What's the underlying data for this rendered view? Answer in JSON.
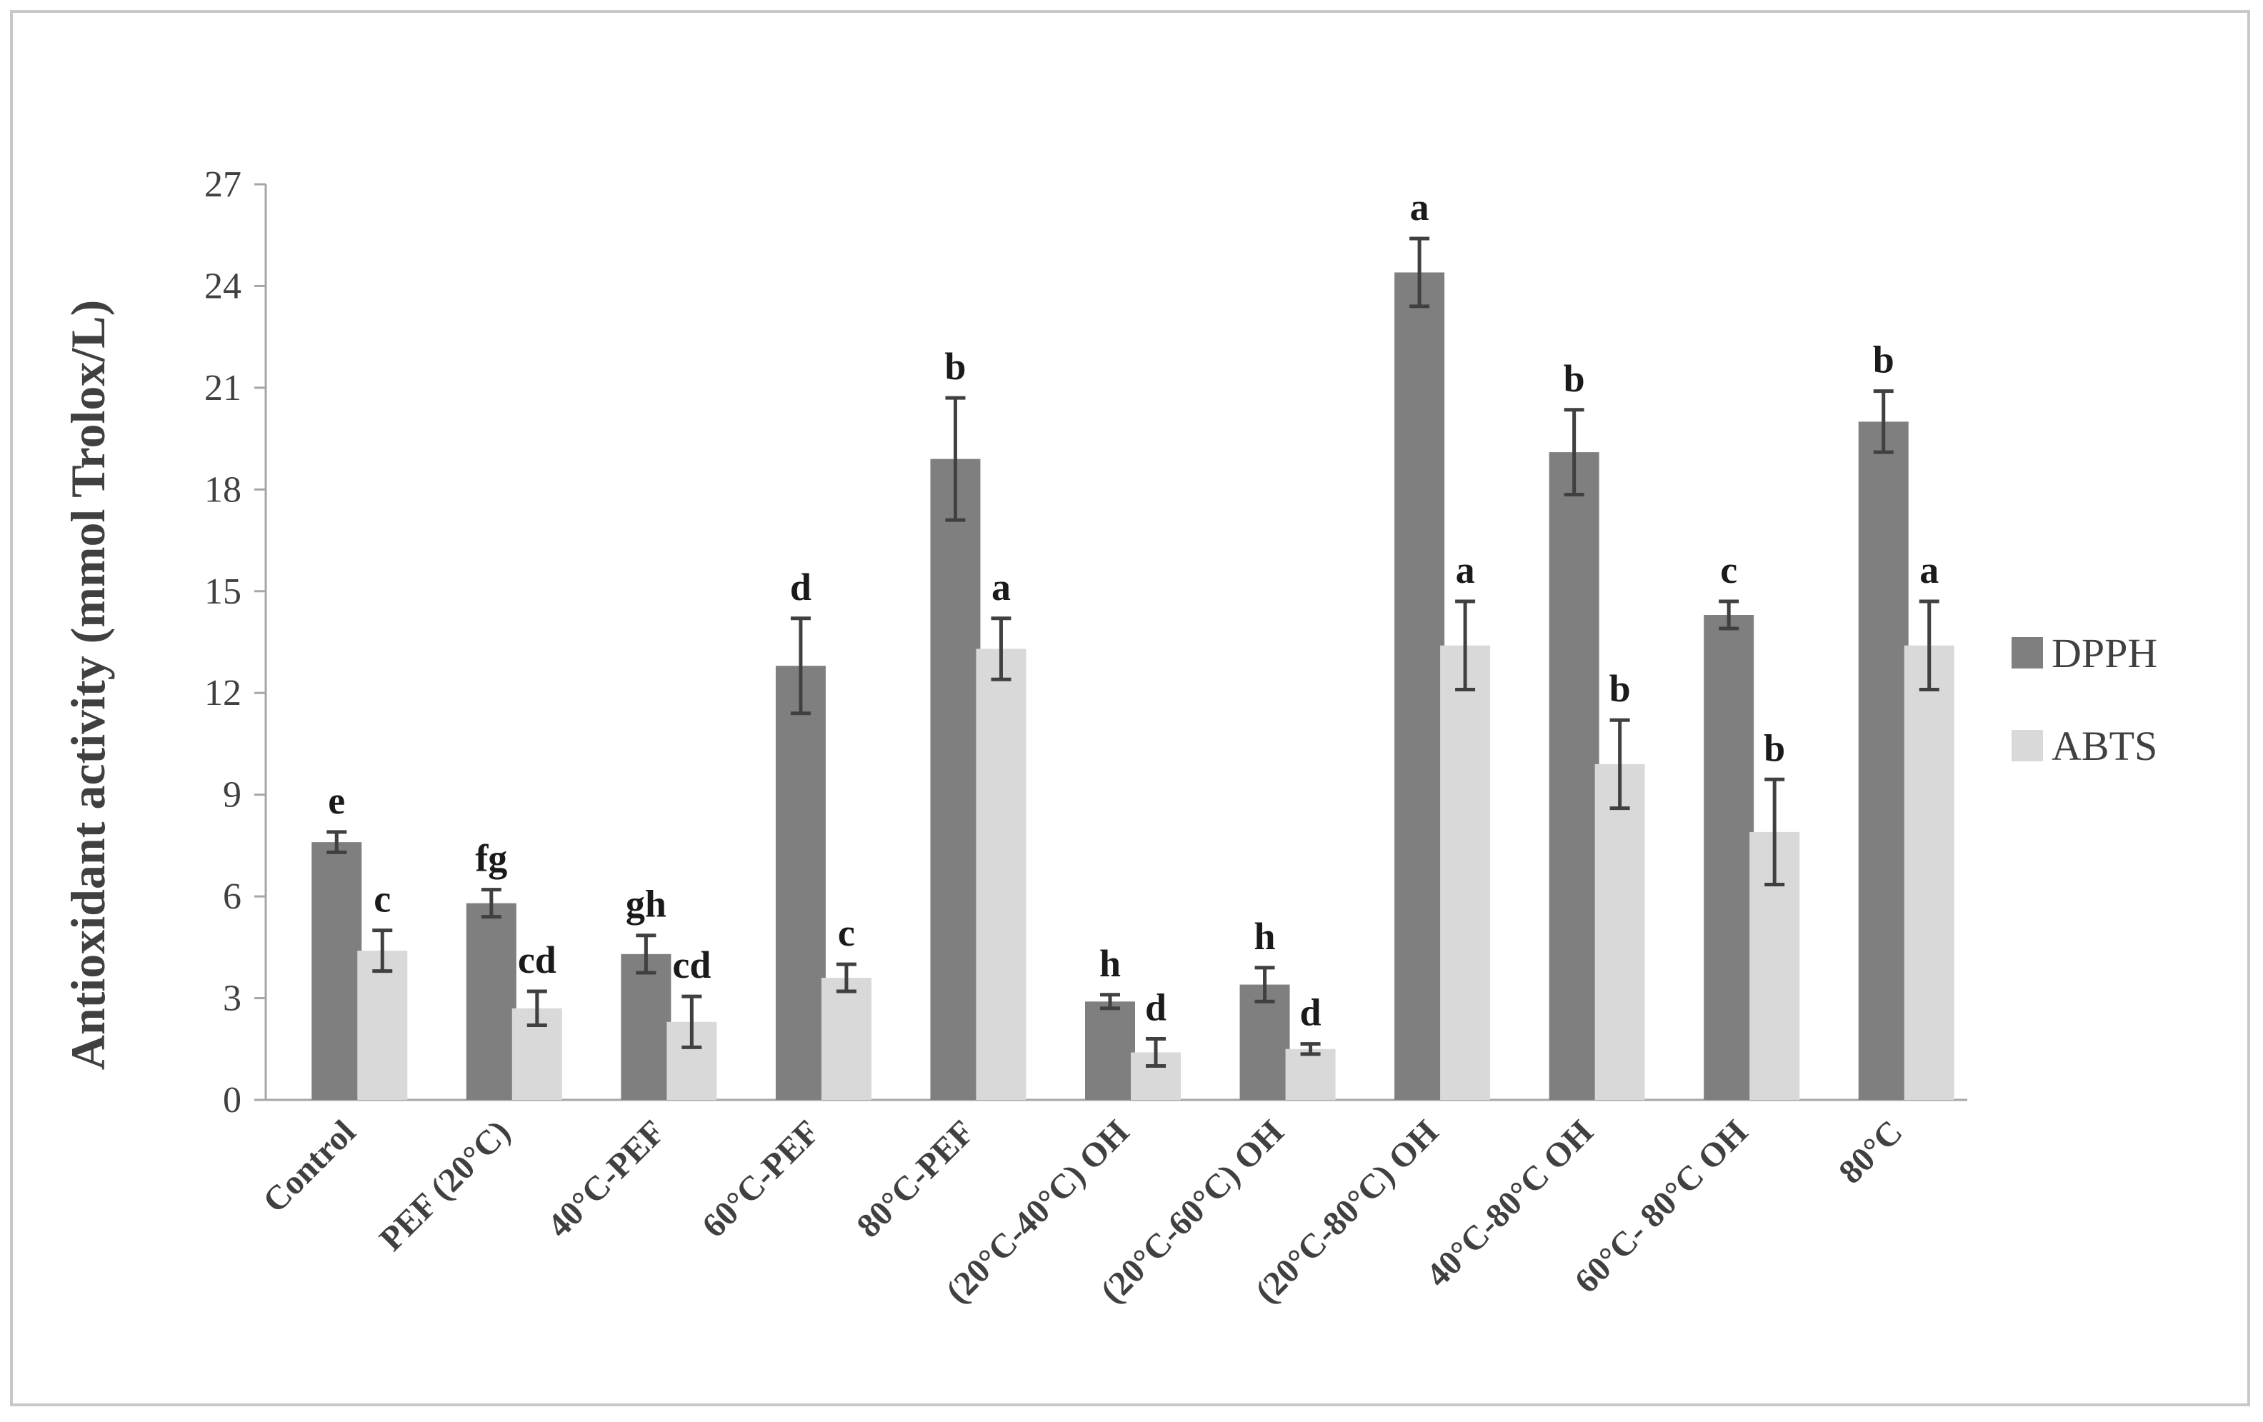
{
  "chart_data": {
    "type": "bar",
    "ylabel": "Antioxidant  activity (mmol  Trolox/L)",
    "ylim": [
      0,
      27
    ],
    "yticks": [
      0,
      3,
      6,
      9,
      12,
      15,
      18,
      21,
      24,
      27
    ],
    "categories": [
      "Control",
      "PEF (20°C)",
      "40°C-PEF",
      "60°C-PEF",
      "80°C-PEF",
      "(20°C-40°C) OH",
      "(20°C-60°C) OH",
      "(20°C-80°C) OH",
      "40°C-80°C OH",
      "60°C- 80°C OH",
      "80°C"
    ],
    "series": [
      {
        "name": "DPPH",
        "color": "#7f7f7f",
        "values": [
          7.6,
          5.8,
          4.3,
          12.8,
          18.9,
          2.9,
          3.4,
          24.4,
          19.1,
          14.3,
          20.0
        ],
        "errors": [
          0.3,
          0.4,
          0.55,
          1.4,
          1.8,
          0.2,
          0.5,
          1.0,
          1.25,
          0.4,
          0.9
        ],
        "letters": [
          "e",
          "fg",
          "gh",
          "d",
          "b",
          "h",
          "h",
          "a",
          "b",
          "c",
          "b"
        ]
      },
      {
        "name": "ABTS",
        "color": "#d9d9d9",
        "values": [
          4.4,
          2.7,
          2.3,
          3.6,
          13.3,
          1.4,
          1.5,
          13.4,
          9.9,
          7.9,
          13.4
        ],
        "errors": [
          0.6,
          0.5,
          0.75,
          0.4,
          0.9,
          0.4,
          0.15,
          1.3,
          1.3,
          1.55,
          1.3
        ],
        "letters": [
          "c",
          "cd",
          "cd",
          "c",
          "a",
          "d",
          "d",
          "a",
          "b",
          "b",
          "a"
        ]
      }
    ],
    "legend": "right",
    "grid": false
  }
}
